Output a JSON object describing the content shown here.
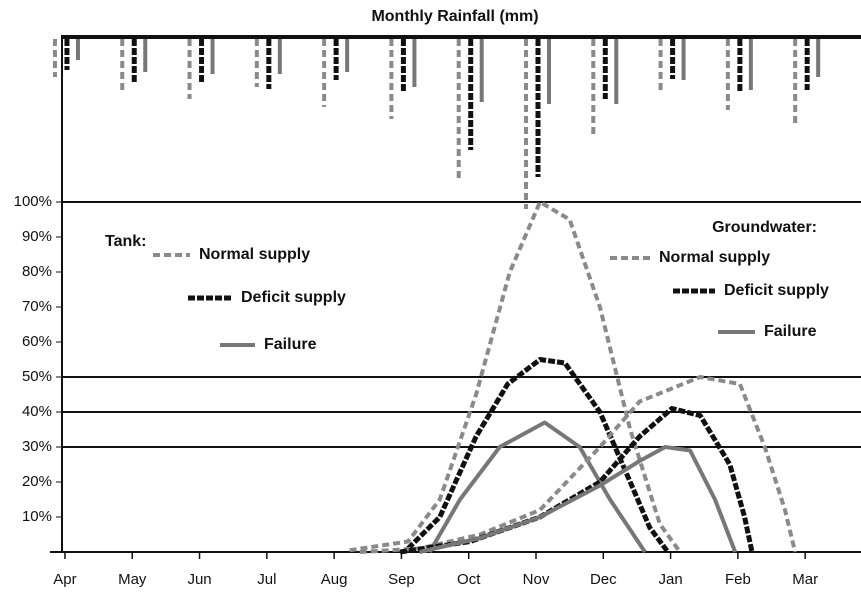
{
  "chart_data": [
    {
      "type": "hanging-bar",
      "title": "Monthly Rainfall (mm)",
      "ylim": [
        0,
        170
      ],
      "series": [
        {
          "style": "normal",
          "color": "#8a8a8a",
          "values": [
            38,
            51,
            60,
            48,
            68,
            80,
            140,
            170,
            96,
            53,
            71,
            85
          ]
        },
        {
          "style": "deficit",
          "color": "#111111",
          "values": [
            31,
            45,
            43,
            50,
            41,
            53,
            111,
            138,
            60,
            40,
            53,
            51
          ]
        },
        {
          "style": "failure",
          "color": "#777777",
          "values": [
            21,
            33,
            35,
            35,
            33,
            48,
            63,
            65,
            65,
            41,
            51,
            38
          ]
        }
      ]
    },
    {
      "type": "line",
      "categories": [
        "Apr",
        "May",
        "Jun",
        "Jul",
        "Aug",
        "Sep",
        "Oct",
        "Nov",
        "Dec",
        "Jan",
        "Feb",
        "Mar"
      ],
      "xlim": [
        -0.2,
        11.8
      ],
      "ylim": [
        0,
        100
      ],
      "yticks": [
        {
          "value": 10,
          "label": "10%"
        },
        {
          "value": 20,
          "label": "20%"
        },
        {
          "value": 30,
          "label": "30%"
        },
        {
          "value": 40,
          "label": "40%"
        },
        {
          "value": 50,
          "label": "50%"
        },
        {
          "value": 60,
          "label": "60%"
        },
        {
          "value": 70,
          "label": "70%"
        },
        {
          "value": 80,
          "label": "80%"
        },
        {
          "value": 90,
          "label": "90%"
        },
        {
          "value": 100,
          "label": "100%"
        }
      ],
      "reference_lines": [
        100,
        50,
        40,
        30
      ],
      "groups": [
        "Tank:",
        "Groundwater:"
      ],
      "series": [
        {
          "name": "Normal supply",
          "group": 0,
          "style": "normal",
          "color": "#8a8a8a",
          "x": [
            4.23,
            5.1,
            5.57,
            6.11,
            6.61,
            7.06,
            7.5,
            7.95,
            8.4,
            8.84,
            9.14
          ],
          "values": [
            0.5,
            3,
            15,
            45,
            80,
            100,
            95,
            70,
            35,
            8,
            0
          ]
        },
        {
          "name": "Deficit supply",
          "group": 0,
          "style": "deficit",
          "color": "#111111",
          "x": [
            5.1,
            5.57,
            6.11,
            6.58,
            7.06,
            7.43,
            7.95,
            8.4,
            8.69,
            8.96
          ],
          "values": [
            1,
            10,
            33,
            48,
            55,
            54,
            40,
            20,
            7,
            0
          ]
        },
        {
          "name": "Failure",
          "group": 0,
          "style": "failure",
          "color": "#777777",
          "x": [
            5.42,
            5.87,
            6.46,
            7.13,
            7.65,
            8.1,
            8.62
          ],
          "values": [
            0,
            15,
            30,
            37,
            30,
            15,
            0
          ]
        },
        {
          "name": "Normal supply",
          "group": 1,
          "style": "normal",
          "color": "#8a8a8a",
          "x": [
            4.38,
            5.27,
            6.17,
            7.06,
            7.95,
            8.54,
            9.44,
            10.03,
            10.4,
            10.7,
            10.85
          ],
          "values": [
            0,
            1,
            5,
            12,
            30,
            43,
            50,
            48,
            30,
            12,
            0
          ]
        },
        {
          "name": "Deficit supply",
          "group": 1,
          "style": "deficit",
          "color": "#111111",
          "x": [
            4.98,
            6.02,
            7.06,
            7.95,
            8.54,
            9.02,
            9.44,
            9.88,
            10.1,
            10.21
          ],
          "values": [
            0,
            3,
            10,
            20,
            33,
            41,
            39,
            25,
            10,
            0
          ]
        },
        {
          "name": "Failure",
          "group": 1,
          "style": "failure",
          "color": "#777777",
          "x": [
            5.27,
            6.17,
            7.06,
            7.95,
            8.54,
            8.92,
            9.29,
            9.66,
            9.96
          ],
          "values": [
            0,
            4,
            10,
            19,
            26,
            30,
            29,
            15,
            0
          ]
        }
      ]
    }
  ]
}
